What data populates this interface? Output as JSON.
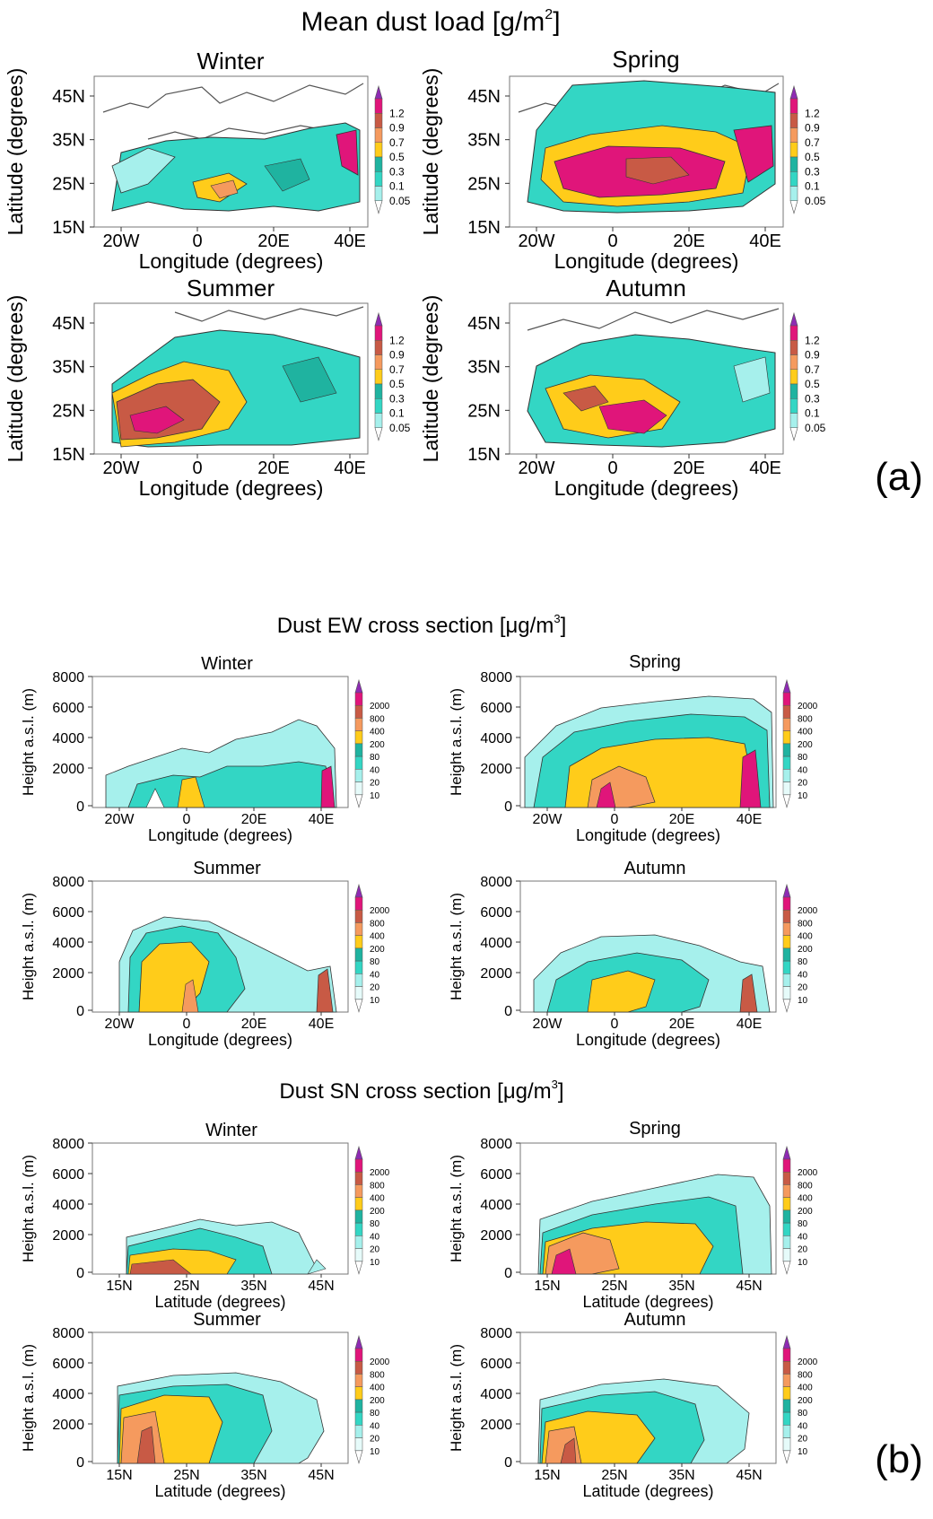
{
  "colors": {
    "c1": "#a6f0ec",
    "c2": "#33d6c4",
    "c3": "#1fb3a0",
    "c4": "#ffcc1a",
    "c5": "#f59a5e",
    "c6": "#c85a45",
    "c7": "#e0157a",
    "c8": "#8e2bb3"
  },
  "part_a": {
    "title": "Mean dust load [g/m",
    "title_sup": "2",
    "title_end": "]",
    "label": "(a)",
    "xlabel": "Longitude (degrees)",
    "ylabel": "Latitude (degrees)",
    "xticks": [
      "20W",
      "0",
      "20E",
      "40E"
    ],
    "yticks": [
      "45N",
      "35N",
      "25N",
      "15N"
    ],
    "colorbar": [
      "1.2",
      "0.9",
      "0.7",
      "0.5",
      "0.3",
      "0.1",
      "0.05"
    ],
    "panels": [
      {
        "season": "Winter"
      },
      {
        "season": "Spring"
      },
      {
        "season": "Summer"
      },
      {
        "season": "Autumn"
      }
    ]
  },
  "part_ew": {
    "title": "Dust EW cross section [μg/m",
    "title_sup": "3",
    "title_end": "]",
    "xlabel": "Longitude (degrees)",
    "ylabel": "Height a.s.l. (m)",
    "xticks": [
      "20W",
      "0",
      "20E",
      "40E"
    ],
    "yticks": [
      "8000",
      "6000",
      "4000",
      "2000",
      "0"
    ],
    "colorbar": [
      "2000",
      "800",
      "400",
      "200",
      "80",
      "40",
      "20",
      "10"
    ],
    "panels": [
      {
        "season": "Winter"
      },
      {
        "season": "Spring"
      },
      {
        "season": "Summer"
      },
      {
        "season": "Autumn"
      }
    ]
  },
  "part_sn": {
    "title": "Dust SN cross section [μg/m",
    "title_sup": "3",
    "title_end": "]",
    "label": "(b)",
    "xlabel": "Latitude (degrees)",
    "ylabel": "Height a.s.l. (m)",
    "xticks": [
      "15N",
      "25N",
      "35N",
      "45N"
    ],
    "yticks": [
      "8000",
      "6000",
      "4000",
      "2000",
      "0"
    ],
    "colorbar": [
      "2000",
      "800",
      "400",
      "200",
      "80",
      "40",
      "20",
      "10"
    ],
    "panels": [
      {
        "season": "Winter"
      },
      {
        "season": "Spring"
      },
      {
        "season": "Summer"
      },
      {
        "season": "Autumn"
      }
    ]
  },
  "chart_data": [
    {
      "type": "heatmap",
      "title": "Mean dust load [g/m2]",
      "xlabel": "Longitude (degrees)",
      "ylabel": "Latitude (degrees)",
      "xlim": [
        "20W",
        "40E"
      ],
      "ylim": [
        "15N",
        "45N"
      ],
      "panels": [
        "Winter",
        "Spring",
        "Summer",
        "Autumn"
      ],
      "levels": [
        0.05,
        0.1,
        0.3,
        0.5,
        0.7,
        0.9,
        1.2
      ],
      "legend": "right"
    },
    {
      "type": "heatmap",
      "title": "Dust EW cross section [μg/m3]",
      "xlabel": "Longitude (degrees)",
      "ylabel": "Height a.s.l. (m)",
      "ylim": [
        0,
        8000
      ],
      "panels": [
        "Winter",
        "Spring",
        "Summer",
        "Autumn"
      ],
      "levels": [
        10,
        20,
        40,
        80,
        200,
        400,
        800,
        2000
      ],
      "legend": "right"
    },
    {
      "type": "heatmap",
      "title": "Dust SN cross section [μg/m3]",
      "xlabel": "Latitude (degrees)",
      "ylabel": "Height a.s.l. (m)",
      "ylim": [
        0,
        8000
      ],
      "panels": [
        "Winter",
        "Spring",
        "Summer",
        "Autumn"
      ],
      "levels": [
        10,
        20,
        40,
        80,
        200,
        400,
        800,
        2000
      ],
      "legend": "right"
    }
  ]
}
